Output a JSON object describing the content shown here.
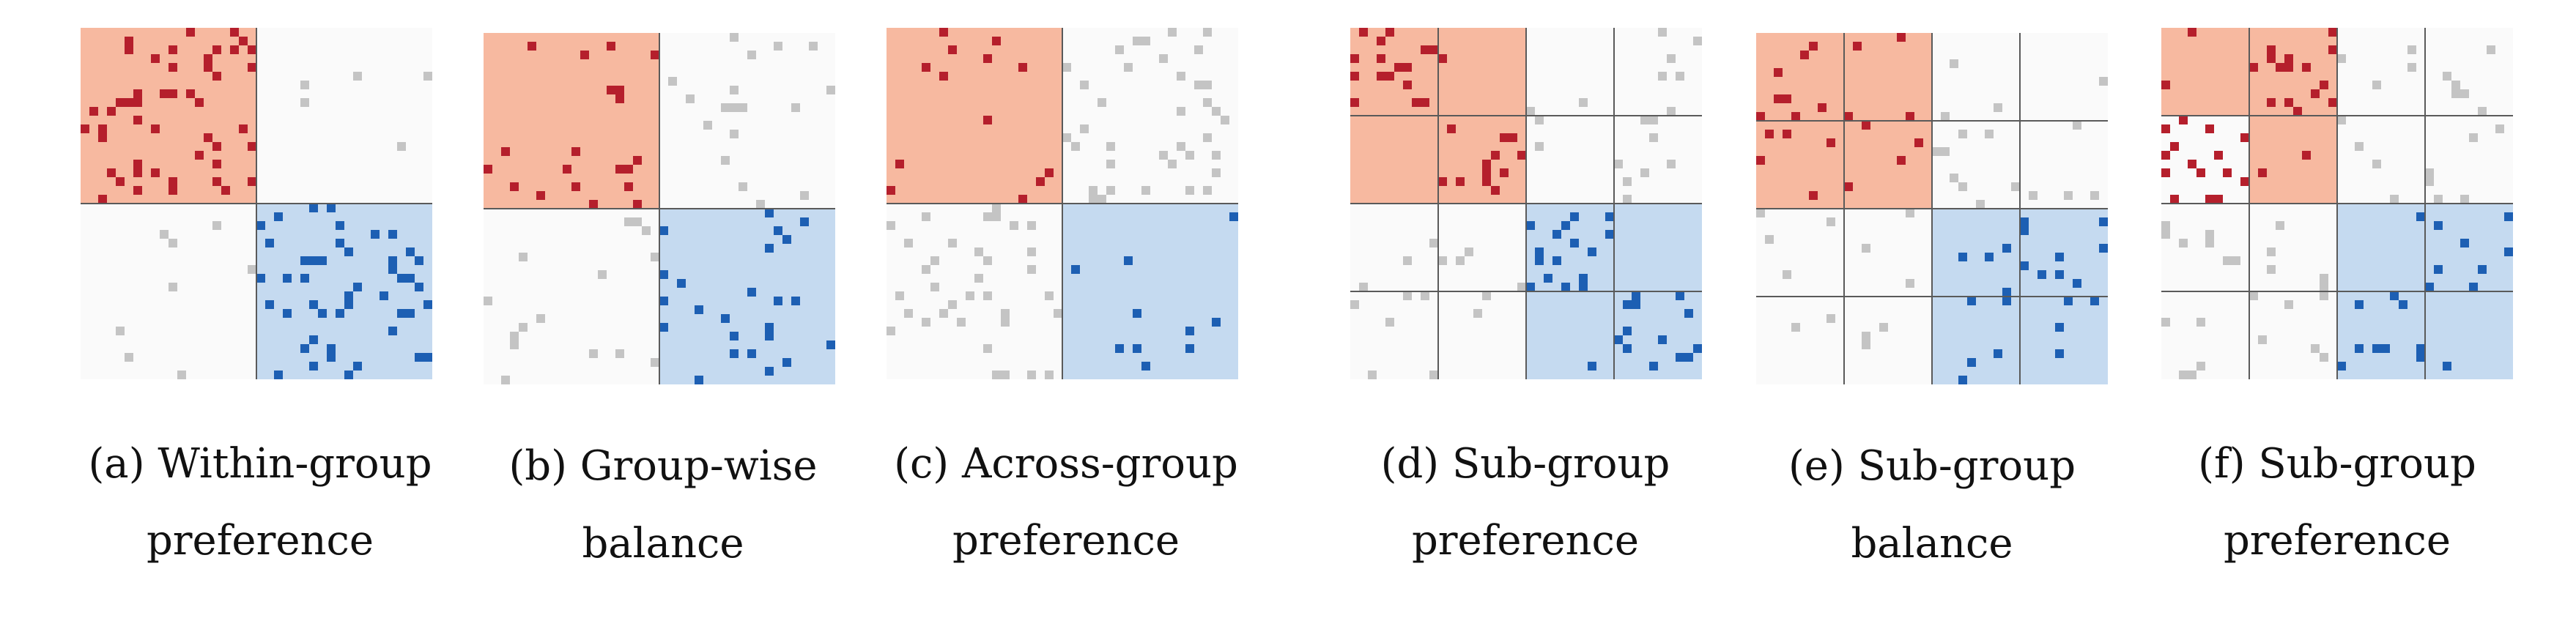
{
  "colors": {
    "group_a_fill": "#f7b9a0",
    "group_a_cell": "#b51f2c",
    "group_b_fill": "#c5daf0",
    "group_b_cell": "#1d5fb3",
    "off_diagonal_cell": "#c4c4c4",
    "matrix_background": "#fafafa",
    "divider": "#5a5a5a"
  },
  "panels": [
    {
      "id": "a",
      "caption_line1": "(a) Within-group",
      "caption_line2": "preference",
      "grid_size": 40,
      "structure": "two-groups",
      "highlight": "diagonal",
      "density": {
        "diagonal": 0.09,
        "off_diagonal": 0.012
      }
    },
    {
      "id": "b",
      "caption_line1": "(b) Group-wise",
      "caption_line2": "balance",
      "grid_size": 40,
      "structure": "two-groups",
      "highlight": "diagonal",
      "density": {
        "diagonal": 0.04,
        "off_diagonal": 0.04
      }
    },
    {
      "id": "c",
      "caption_line1": "(c) Across-group",
      "caption_line2": "preference",
      "grid_size": 40,
      "structure": "two-groups",
      "highlight": "diagonal",
      "density": {
        "diagonal": 0.02,
        "off_diagonal": 0.08
      }
    },
    {
      "id": "d",
      "caption_line1": "(d) Sub-group",
      "caption_line2": "preference",
      "grid_size": 40,
      "structure": "four-subgroups",
      "highlight": "diagonal",
      "density": {
        "sub_diagonal": 0.12,
        "block_diagonal": 0.01,
        "off_diagonal": 0.05
      }
    },
    {
      "id": "e",
      "caption_line1": "(e) Sub-group",
      "caption_line2": "balance",
      "grid_size": 40,
      "structure": "four-subgroups",
      "highlight": "diagonal",
      "density": {
        "sub_diagonal": 0.05,
        "block_diagonal": 0.05,
        "off_diagonal": 0.05
      }
    },
    {
      "id": "f",
      "caption_line1": "(f) Sub-group",
      "caption_line2": "preference",
      "grid_size": 40,
      "structure": "four-subgroups",
      "highlight": "off-sub-diagonal",
      "density": {
        "sub_diagonal": 0.01,
        "block_diagonal": 0.12,
        "off_diagonal": 0.05
      }
    }
  ]
}
